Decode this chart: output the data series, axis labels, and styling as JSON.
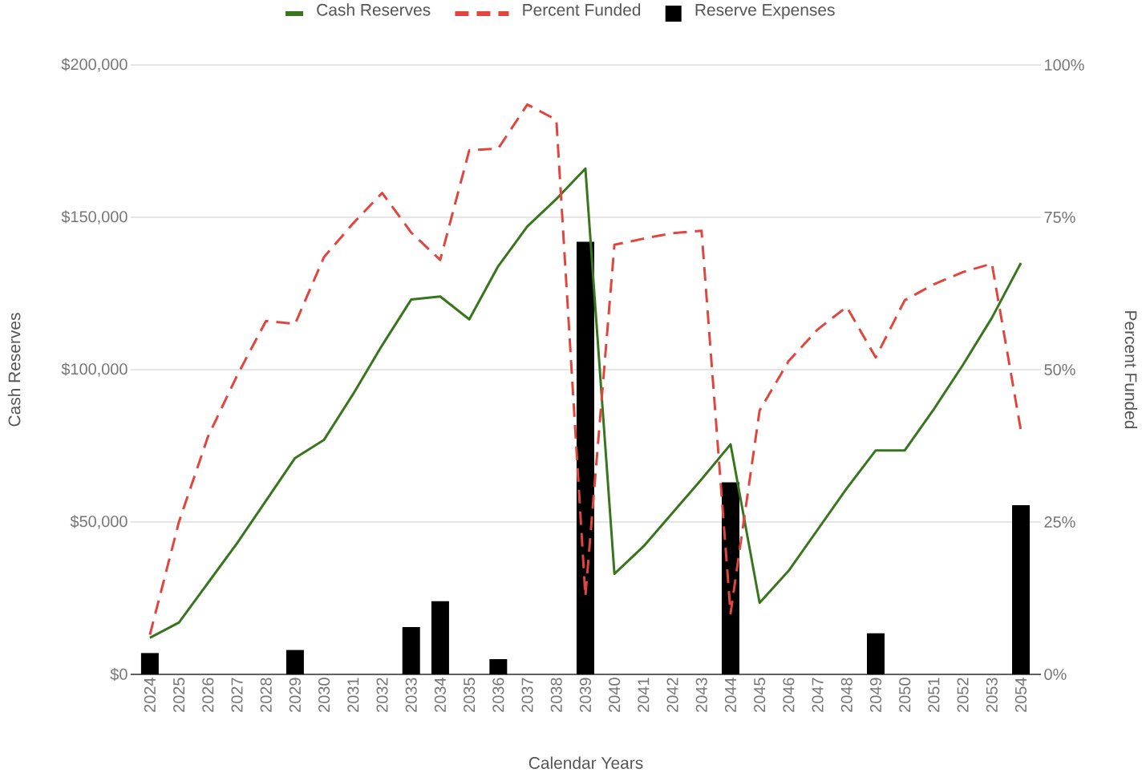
{
  "chart_data": {
    "type": "line",
    "xlabel": "Calendar Years",
    "ylabel": "Cash Reserves",
    "y2label": "Percent Funded",
    "categories": [
      "2024",
      "2025",
      "2026",
      "2027",
      "2028",
      "2029",
      "2030",
      "2031",
      "2032",
      "2033",
      "2034",
      "2035",
      "2036",
      "2037",
      "2038",
      "2039",
      "2040",
      "2041",
      "2042",
      "2043",
      "2044",
      "2045",
      "2046",
      "2047",
      "2048",
      "2049",
      "2050",
      "2051",
      "2052",
      "2053",
      "2054"
    ],
    "series": [
      {
        "name": "Cash Reserves",
        "color": "#38761d",
        "line_style": "solid",
        "values": [
          12000,
          17000,
          30000,
          43000,
          57000,
          71000,
          77000,
          92000,
          108000,
          123000,
          124000,
          116500,
          134000,
          147000,
          156000,
          166000,
          33000,
          42000,
          53000,
          64000,
          75500,
          23500,
          34000,
          47500,
          61000,
          73500,
          73500,
          87000,
          101500,
          117000,
          135000
        ]
      },
      {
        "name": "Percent Funded",
        "axis": "y2",
        "color": "#e0463e",
        "line_style": "dashed",
        "values": [
          6.5,
          25,
          39,
          49,
          58,
          57.5,
          68.5,
          74,
          79,
          72.5,
          68,
          86,
          86.3,
          93.5,
          91,
          12.8,
          70.5,
          71.5,
          72.4,
          72.8,
          10,
          43.3,
          51.4,
          56.6,
          60.3,
          52,
          61.4,
          64,
          66,
          67.4,
          40
        ]
      },
      {
        "name": "Reserve Expenses",
        "type": "bar",
        "color": "#000000",
        "values": [
          7000,
          null,
          null,
          null,
          null,
          8000,
          null,
          null,
          null,
          15500,
          24000,
          null,
          5000,
          null,
          null,
          142000,
          null,
          null,
          null,
          null,
          63000,
          null,
          null,
          null,
          null,
          13500,
          null,
          null,
          null,
          null,
          55500
        ]
      }
    ],
    "ylim": [
      0,
      200000
    ],
    "yticks": [
      {
        "value": 0,
        "label": "$0"
      },
      {
        "value": 50000,
        "label": "$50,000"
      },
      {
        "value": 100000,
        "label": "$100,000"
      },
      {
        "value": 150000,
        "label": "$150,000"
      },
      {
        "value": 200000,
        "label": "$200,000"
      }
    ],
    "y2lim": [
      0,
      100
    ],
    "y2ticks": [
      {
        "value": 0,
        "label": "0%"
      },
      {
        "value": 25,
        "label": "25%"
      },
      {
        "value": 50,
        "label": "50%"
      },
      {
        "value": 75,
        "label": "75%"
      },
      {
        "value": 100,
        "label": "100%"
      }
    ],
    "grid": "y",
    "legend": "top"
  }
}
